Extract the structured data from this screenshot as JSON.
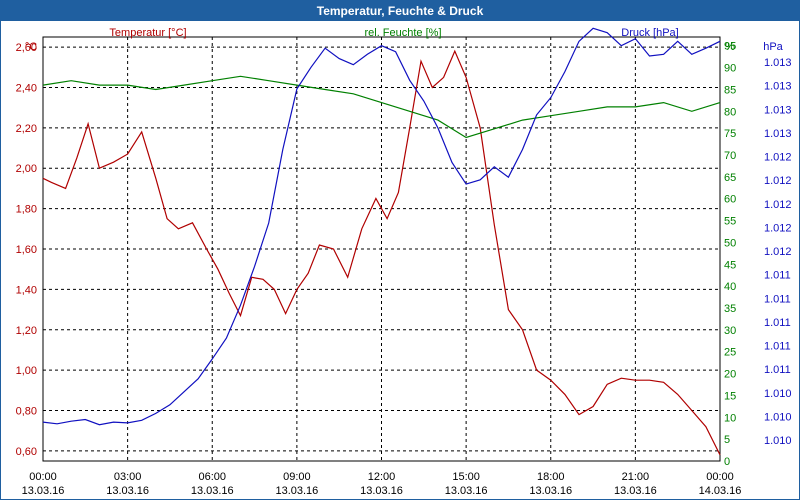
{
  "window": {
    "title": "Temperatur, Feuchte & Druck"
  },
  "colors": {
    "temperature": "#b00000",
    "humidity": "#008000",
    "pressure": "#1010c0",
    "grid": "#000000",
    "title_bar": "#1f5fa0"
  },
  "chart_data": {
    "type": "line",
    "title": "Temperatur, Feuchte & Druck",
    "grid": true,
    "x_ticks": [
      {
        "time": "00:00",
        "date": "13.03.16"
      },
      {
        "time": "03:00",
        "date": "13.03.16"
      },
      {
        "time": "06:00",
        "date": "13.03.16"
      },
      {
        "time": "09:00",
        "date": "13.03.16"
      },
      {
        "time": "12:00",
        "date": "13.03.16"
      },
      {
        "time": "15:00",
        "date": "13.03.16"
      },
      {
        "time": "18:00",
        "date": "13.03.16"
      },
      {
        "time": "21:00",
        "date": "13.03.16"
      },
      {
        "time": "00:00",
        "date": "14.03.16"
      }
    ],
    "x_range_hours": [
      0,
      24
    ],
    "axes": {
      "temperature": {
        "label": "Temperatur [°C]",
        "unit": "°C",
        "range": [
          0.55,
          2.65
        ],
        "ticks": [
          "2,60",
          "2,40",
          "2,20",
          "2,00",
          "1,80",
          "1,60",
          "1,40",
          "1,20",
          "1,00",
          "0,80",
          "0,60"
        ]
      },
      "humidity": {
        "label": "rel. Feuchte [%]",
        "unit": "%",
        "range": [
          0,
          97
        ],
        "ticks": [
          "95",
          "90",
          "85",
          "80",
          "75",
          "70",
          "65",
          "60",
          "55",
          "50",
          "45",
          "40",
          "35",
          "30",
          "25",
          "20",
          "15",
          "10",
          "5",
          "0"
        ]
      },
      "pressure": {
        "label": "Druck [hPa]",
        "unit": "hPa",
        "ticks": [
          "1.013",
          "1.013",
          "1.013",
          "1.013",
          "1.012",
          "1.012",
          "1.012",
          "1.012",
          "1.012",
          "1.011",
          "1.011",
          "1.011",
          "1.011",
          "1.011",
          "1.010",
          "1.010",
          "1.010"
        ]
      }
    },
    "series": [
      {
        "name": "Temperatur [°C]",
        "axis": "temperature",
        "x": [
          0,
          0.3,
          0.8,
          1.2,
          1.6,
          2.0,
          2.5,
          3.0,
          3.5,
          4.0,
          4.4,
          4.8,
          5.3,
          5.8,
          6.2,
          6.6,
          7.0,
          7.4,
          7.8,
          8.2,
          8.6,
          9.0,
          9.4,
          9.8,
          10.3,
          10.8,
          11.3,
          11.8,
          12.2,
          12.6,
          13.0,
          13.4,
          13.8,
          14.2,
          14.6,
          15.0,
          15.5,
          16.0,
          16.5,
          17.0,
          17.5,
          18.0,
          18.5,
          19.0,
          19.5,
          20.0,
          20.5,
          21.0,
          21.5,
          22.0,
          22.5,
          23.0,
          23.5,
          24.0
        ],
        "values": [
          1.95,
          1.93,
          1.9,
          2.05,
          2.22,
          2.0,
          2.03,
          2.07,
          2.18,
          1.95,
          1.75,
          1.7,
          1.73,
          1.6,
          1.5,
          1.38,
          1.27,
          1.46,
          1.45,
          1.4,
          1.28,
          1.4,
          1.48,
          1.62,
          1.6,
          1.46,
          1.7,
          1.85,
          1.75,
          1.88,
          2.2,
          2.53,
          2.4,
          2.45,
          2.58,
          2.45,
          2.2,
          1.72,
          1.3,
          1.2,
          1.0,
          0.95,
          0.88,
          0.78,
          0.82,
          0.93,
          0.96,
          0.95,
          0.95,
          0.94,
          0.88,
          0.8,
          0.72,
          0.58
        ]
      },
      {
        "name": "rel. Feuchte [%]",
        "axis": "humidity",
        "x": [
          0,
          1,
          2,
          3,
          4,
          5,
          6,
          7,
          8,
          9,
          10,
          11,
          12,
          13,
          14,
          15,
          16,
          17,
          18,
          19,
          20,
          21,
          22,
          23,
          24
        ],
        "values": [
          86,
          87,
          86,
          86,
          85,
          86,
          87,
          88,
          87,
          86,
          85,
          84,
          82,
          80,
          78,
          74,
          76,
          78,
          79,
          80,
          81,
          81,
          82,
          80,
          82
        ]
      },
      {
        "name": "Druck [hPa]",
        "axis": "pressure",
        "x": [
          0,
          0.5,
          1,
          1.5,
          2,
          2.5,
          3,
          3.5,
          4,
          4.5,
          5,
          5.5,
          6,
          6.5,
          7,
          7.5,
          8,
          8.5,
          9,
          9.5,
          10,
          10.5,
          11,
          11.5,
          12,
          12.5,
          13,
          13.5,
          14,
          14.5,
          15,
          15.5,
          16,
          16.5,
          17,
          17.5,
          18,
          18.5,
          19,
          19.5,
          20,
          20.5,
          21,
          21.5,
          22,
          22.5,
          23,
          23.5,
          24
        ],
        "values": [
          0.5,
          0.3,
          0.6,
          0.8,
          0.2,
          0.5,
          0.4,
          0.7,
          1.5,
          2.5,
          4.0,
          5.5,
          7.8,
          10.2,
          14.0,
          18.5,
          23.5,
          32.0,
          39.0,
          41.5,
          43.7,
          42.5,
          41.8,
          43.0,
          44.0,
          43.3,
          40.0,
          37.6,
          34.5,
          30.5,
          28.0,
          28.5,
          30.0,
          28.8,
          32.0,
          36.0,
          38.0,
          41.0,
          44.5,
          46.0,
          45.5,
          44.0,
          44.8,
          42.8,
          43.0,
          44.5,
          43.0,
          43.7,
          44.5
        ]
      }
    ]
  }
}
